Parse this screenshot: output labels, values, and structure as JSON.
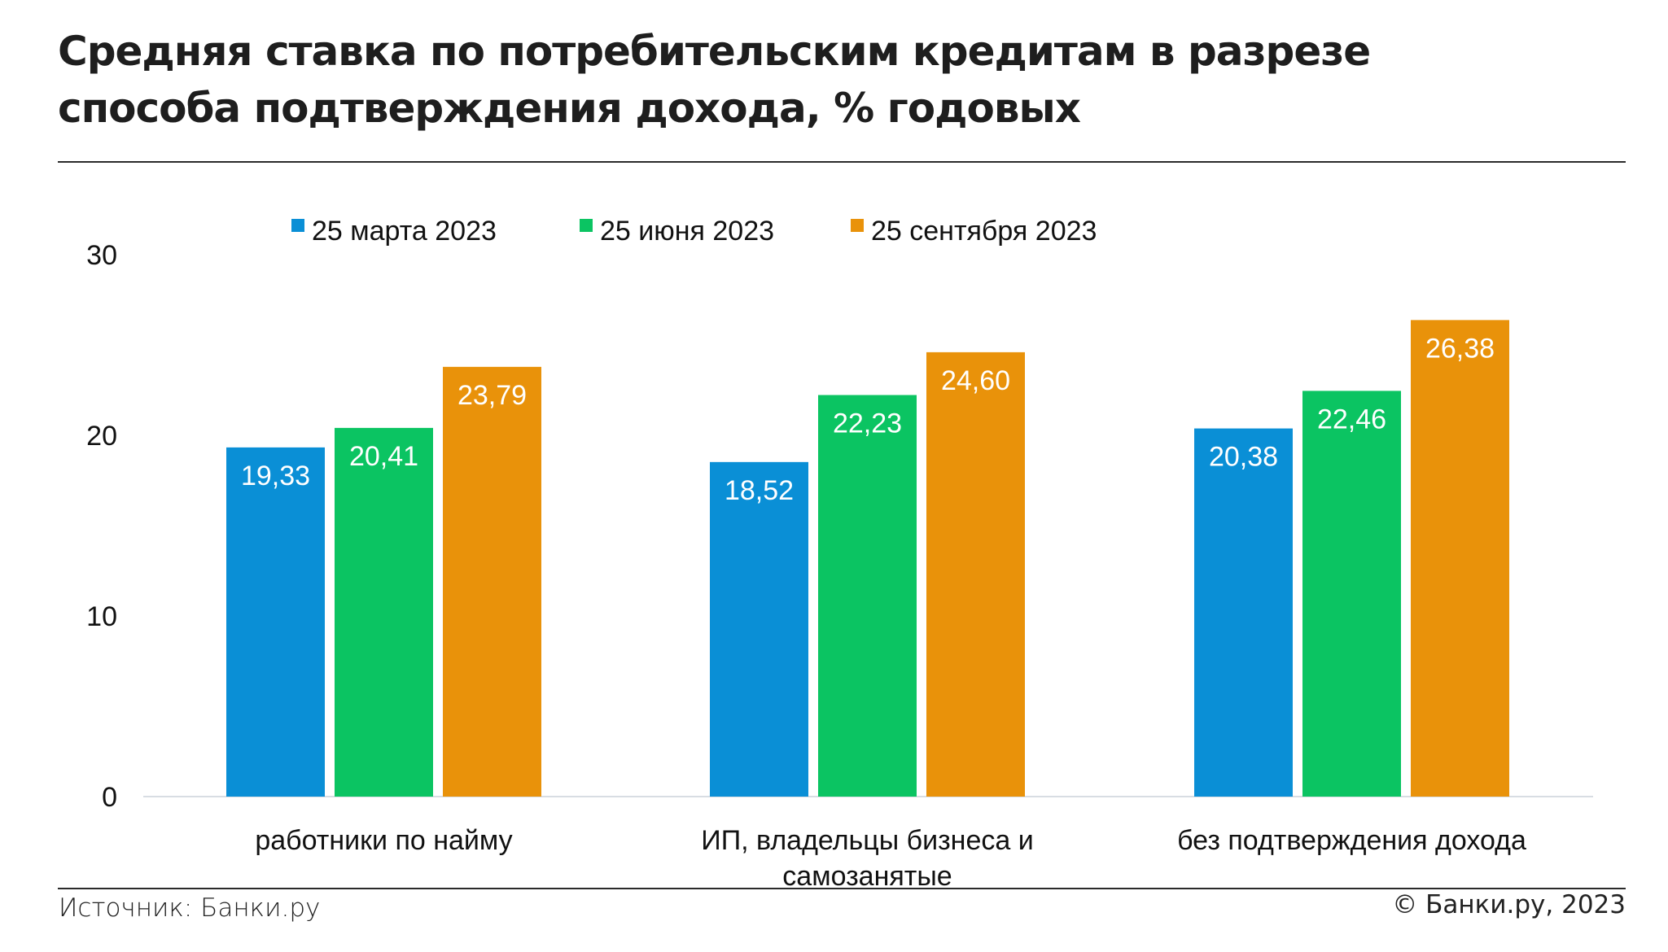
{
  "header": {
    "title_line1": "Средняя ставка по потребительским кредитам в разрезе",
    "title_line2": "способа подтверждения дохода, % годовых"
  },
  "chart_data": {
    "type": "bar",
    "title": "Средняя ставка по потребительским кредитам в разрезе способа подтверждения дохода, % годовых",
    "xlabel": "",
    "ylabel": "",
    "ylim": [
      0,
      30
    ],
    "yticks": [
      0,
      10,
      20,
      30
    ],
    "grid": false,
    "legend_position": "top",
    "categories": [
      [
        "работники по найму"
      ],
      [
        "ИП, владельцы бизнеса и",
        "самозанятые"
      ],
      [
        "без подтверждения дохода"
      ]
    ],
    "series": [
      {
        "name": "25 марта 2023",
        "color": "#0A8FD6",
        "values": [
          19.33,
          18.52,
          20.38
        ],
        "labels": [
          "19,33",
          "18,52",
          "20,38"
        ]
      },
      {
        "name": "25 июня 2023",
        "color": "#0BC462",
        "values": [
          20.41,
          22.23,
          22.46
        ],
        "labels": [
          "20,41",
          "22,23",
          "22,46"
        ]
      },
      {
        "name": "25 сентября 2023",
        "color": "#E9920A",
        "values": [
          23.79,
          24.6,
          26.38
        ],
        "labels": [
          "23,79",
          "24,60",
          "26,38"
        ]
      }
    ]
  },
  "footer": {
    "source": "Источник: Банки.ру",
    "copyright": "© Банки.ру, 2023"
  }
}
